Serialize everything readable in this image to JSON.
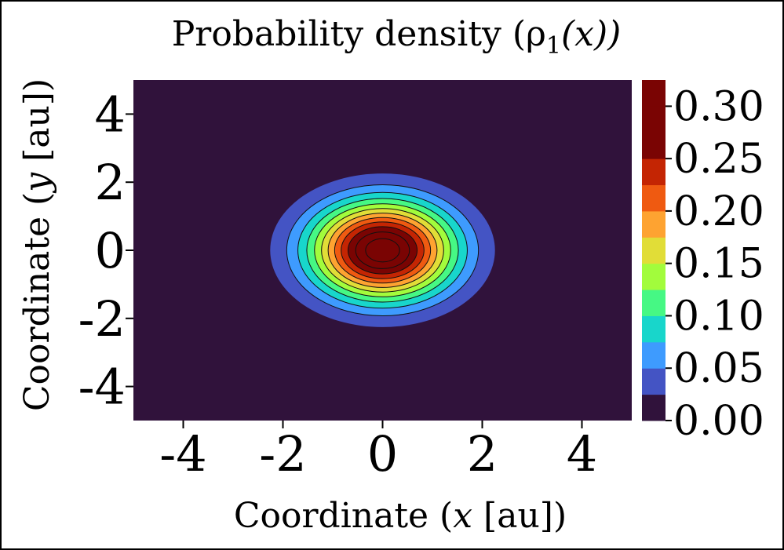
{
  "chart_data": {
    "type": "heatmap",
    "title": "Probability density (ρ",
    "title_sub": "1",
    "title_tail": "(x))",
    "xlabel_pre": "Coordinate (",
    "xlabel_var": "x",
    "xlabel_post": " [au])",
    "ylabel_pre": "Coordinate (",
    "ylabel_var": "y",
    "ylabel_post": " [au])",
    "xlim": [
      -5,
      5
    ],
    "ylim": [
      -5,
      5
    ],
    "x_ticks": [
      -4,
      -2,
      0,
      2,
      4
    ],
    "x_tick_labels": [
      "-4",
      "-2",
      "0",
      "2",
      "4"
    ],
    "y_ticks": [
      4,
      2,
      0,
      -2,
      -4
    ],
    "y_tick_labels": [
      "4",
      "2",
      "0",
      "-2",
      "-4"
    ],
    "center": [
      0,
      0
    ],
    "peak": 0.318,
    "sigma_x": 1.0,
    "sigma_y": 1.0,
    "colorbar": {
      "levels": [
        0.0,
        0.025,
        0.05,
        0.075,
        0.1,
        0.125,
        0.15,
        0.175,
        0.2,
        0.225,
        0.25,
        0.275,
        0.3,
        0.325
      ],
      "ticks": [
        0.0,
        0.05,
        0.1,
        0.15,
        0.2,
        0.25,
        0.3
      ],
      "tick_labels": [
        "0.00",
        "0.05",
        "0.10",
        "0.15",
        "0.20",
        "0.25",
        "0.30"
      ],
      "colors": [
        "#30123b",
        "#4454c4",
        "#3e9bfe",
        "#18d6cb",
        "#46f884",
        "#a2fc3c",
        "#e1dd37",
        "#fea331",
        "#ef5a11",
        "#c42503",
        "#7a0403",
        "#7a0403",
        "#7a0403"
      ]
    }
  }
}
